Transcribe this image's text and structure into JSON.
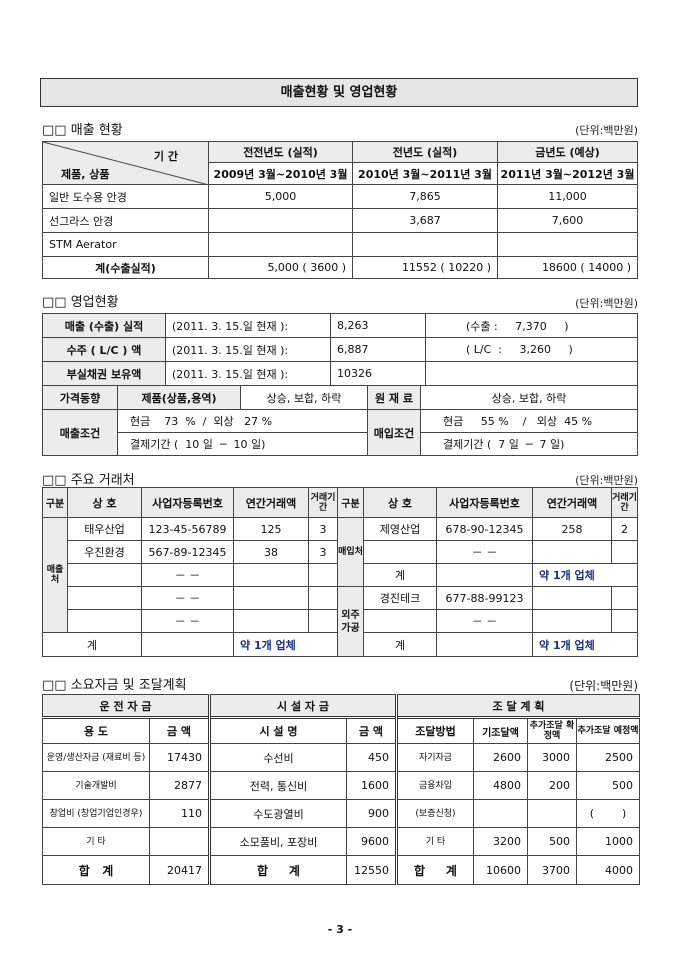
{
  "title": "매출현황 및 영업현황",
  "unit": "(단위:백만원)",
  "sales": {
    "heading": "□□ 매출 현황",
    "corner_period": "기 간",
    "corner_product": "제품, 상품",
    "periods": [
      {
        "label": "전전년도 (실적)",
        "range": "2009년 3월~2010년 3월"
      },
      {
        "label": "전년도 (실적)",
        "range": "2010년 3월~2011년 3월"
      },
      {
        "label": "금년도 (예상)",
        "range": "2011년 3월~2012년 3월"
      }
    ],
    "rows": [
      {
        "name": "일반 도수용 안경",
        "values": [
          "5,000",
          "7,865",
          "11,000"
        ]
      },
      {
        "name": "선그라스 안경",
        "values": [
          "",
          "3,687",
          "7,600"
        ]
      },
      {
        "name": "STM Aerator",
        "values": [
          "",
          "",
          ""
        ]
      }
    ],
    "total": {
      "name": "계(수출실적)",
      "values": [
        "5,000 ( 3600 )",
        "11552 ( 10220 )",
        "18600 ( 14000 )"
      ]
    }
  },
  "business": {
    "heading": "□□ 영업현황",
    "rows": [
      {
        "label": "매출 (수출) 실적",
        "date": "(2011. 3. 15.일 현재 ):",
        "value": "8,263",
        "extra": "(수출 :     7,370     )"
      },
      {
        "label": "수주 ( L/C ) 액",
        "date": "(2011. 3. 15.일 현재 ):",
        "value": "6,887",
        "extra": "( L/C  :     3,260     )"
      },
      {
        "label": "부실채권 보유액",
        "date": "(2011. 3. 15.일 현재 ):",
        "value": "10326",
        "extra": ""
      }
    ],
    "price_label": "가격동향",
    "product_label": "제품(상품,용역)",
    "product_trend": "상승, 보합, 하락",
    "material_label": "원 재 료",
    "material_trend": "상승, 보합, 하락",
    "sales_cond_label": "매출조건",
    "sales_cash": "현금    73  %  /  외상   27 %",
    "sales_term": "결제기간 (  10 일  ─  10 일)",
    "buy_cond_label": "매입조건",
    "buy_cash": "현금     55 %    /   외상  45 %",
    "buy_term": "결제기간 (  7 일  ─  7 일)"
  },
  "partners": {
    "heading": "□□ 주요 거래처",
    "headers": [
      "구분",
      "상   호",
      "사업자등록번호",
      "연간거래액",
      "거래기간"
    ],
    "sales_label": "매출처",
    "purchase_label": "매입처",
    "outsource_label": "외주가공",
    "total_label": "계",
    "count_text": "약 1개 업체",
    "dash": "－  －",
    "sales_rows": [
      [
        "태우산업",
        "123-45-56789",
        "125",
        "3"
      ],
      [
        "우진환경",
        "567-89-12345",
        "38",
        "3"
      ]
    ],
    "purchase_rows": [
      [
        "제영산업",
        "678-90-12345",
        "258",
        "2"
      ]
    ],
    "outsource_rows": [
      [
        "경진테크",
        "677-88-99123",
        "",
        ""
      ]
    ]
  },
  "funds": {
    "heading": "□□ 소요자금 및 조달계획",
    "groups": [
      "운 전 자 금",
      "시 설 자 금",
      "조  달  계  획"
    ],
    "headers": [
      "용 도",
      "금  액",
      "시   설   명",
      "금  액",
      "조달방법",
      "기조달액",
      "추가조달 확정액",
      "추가조달 예정액"
    ],
    "rows": [
      [
        "운영/생산자금 (재료비 등)",
        "17430",
        "수선비",
        "450",
        "자기자금",
        "2600",
        "3000",
        "2500"
      ],
      [
        "기술개발비",
        "2877",
        "전력, 통신비",
        "1600",
        "금융차입",
        "4800",
        "200",
        "500"
      ],
      [
        "창업비 (창업기업인경우)",
        "110",
        "수도광열비",
        "900",
        "(보증신청)",
        "",
        "",
        "(        )"
      ],
      [
        "기   타",
        "",
        "소모품비, 포장비",
        "9600",
        "기    타",
        "3200",
        "500",
        "1000"
      ]
    ],
    "total": [
      "합   계",
      "20417",
      "합     계",
      "12550",
      "합     계",
      "10600",
      "3700",
      "4000"
    ]
  },
  "page": "- 3 -"
}
